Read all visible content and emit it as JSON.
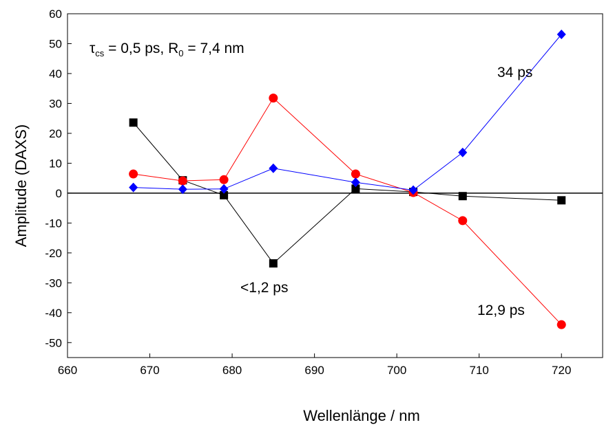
{
  "chart_data": {
    "type": "line",
    "title": "",
    "xlabel": "Wellenlänge / nm",
    "ylabel": "Amplitude (DAXS)",
    "xlim": [
      660,
      725
    ],
    "ylim": [
      -55,
      60
    ],
    "xticks": [
      660,
      670,
      680,
      690,
      700,
      710,
      720
    ],
    "yticks": [
      -50,
      -40,
      -30,
      -20,
      -10,
      0,
      10,
      20,
      30,
      40,
      50,
      60
    ],
    "zero_line": true,
    "grid": false,
    "legend": "none",
    "annotation": {
      "tau_symbol": "τ",
      "tau_sub": "cs",
      "tau_value": " = 0,5 ps, R",
      "r_sub": "0",
      "r_value": " = 7,4 nm"
    },
    "series": [
      {
        "label": "<1,2 ps",
        "color": "#000000",
        "marker": "square",
        "x": [
          668,
          674,
          679,
          685,
          695,
          702,
          708,
          720
        ],
        "y": [
          23.6,
          4.3,
          -0.7,
          -23.5,
          1.5,
          0.4,
          -1.0,
          -2.4
        ]
      },
      {
        "label": "12,9 ps",
        "color": "#ff0000",
        "marker": "circle",
        "x": [
          668,
          674,
          679,
          685,
          695,
          702,
          708,
          720
        ],
        "y": [
          6.4,
          4.1,
          4.5,
          31.8,
          6.4,
          0.2,
          -9.2,
          -44.0
        ]
      },
      {
        "label": "34 ps",
        "color": "#0000ff",
        "marker": "diamond",
        "x": [
          668,
          674,
          679,
          685,
          695,
          702,
          708,
          720
        ],
        "y": [
          1.9,
          1.3,
          1.4,
          8.3,
          3.6,
          1.0,
          13.6,
          53.1
        ]
      }
    ]
  }
}
